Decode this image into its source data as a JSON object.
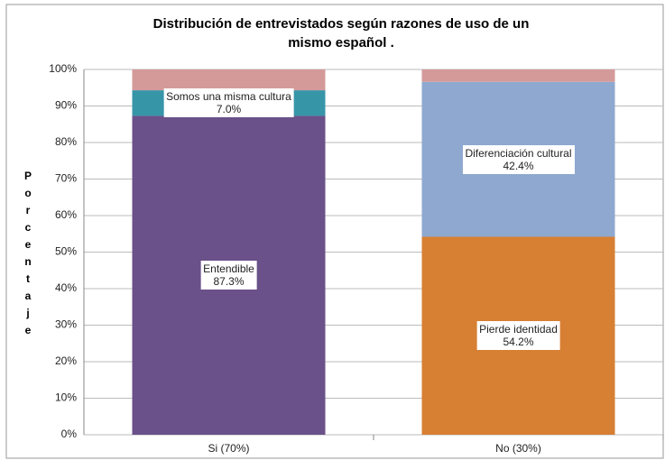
{
  "chart_data": {
    "type": "stacked_bar",
    "title": "Distribución de entrevistados según razones de uso de un mismo español .",
    "y_label": "Porcentaje",
    "categories": [
      "Si (70%)",
      "No (30%)"
    ],
    "series": [
      {
        "name": "Entendible",
        "color": "#6a5189",
        "values": [
          87.3,
          null
        ],
        "value_labels": [
          "87.3%",
          null
        ]
      },
      {
        "name": "Pierde identidad",
        "color": "#d77f33",
        "values": [
          null,
          54.2
        ],
        "value_labels": [
          null,
          "54.2%"
        ]
      },
      {
        "name": "Somos una misma cultura",
        "color": "#3795a8",
        "values": [
          7.0,
          null
        ],
        "value_labels": [
          "7.0%",
          null
        ]
      },
      {
        "name": "Diferenciación cultural",
        "color": "#8ea8cf",
        "values": [
          null,
          42.4
        ],
        "value_labels": [
          null,
          "42.4%"
        ]
      },
      {
        "color": "#d49a9a",
        "values": [
          5.7,
          3.4
        ]
      }
    ],
    "ylim": [
      0,
      100
    ],
    "yticks": [
      {
        "value": 0,
        "label": "0%"
      },
      {
        "value": 10,
        "label": "10%"
      },
      {
        "value": 20,
        "label": "20%"
      },
      {
        "value": 30,
        "label": "30%"
      },
      {
        "value": 40,
        "label": "40%"
      },
      {
        "value": 50,
        "label": "50%"
      },
      {
        "value": 60,
        "label": "60%"
      },
      {
        "value": 70,
        "label": "70%"
      },
      {
        "value": 80,
        "label": "80%"
      },
      {
        "value": 90,
        "label": "90%"
      },
      {
        "value": 100,
        "label": "100%"
      }
    ],
    "grid": true
  }
}
